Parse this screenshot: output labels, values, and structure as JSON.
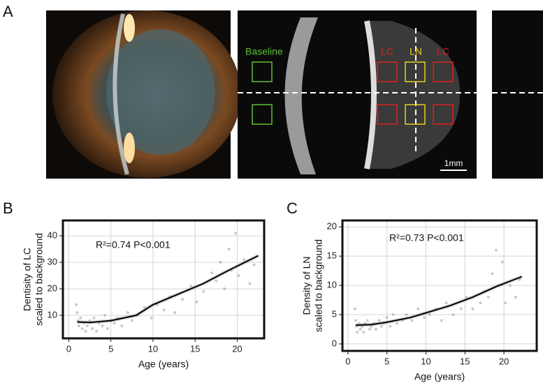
{
  "figure": {
    "panels": [
      "A",
      "B",
      "C"
    ],
    "image_labels": {
      "baseline": "Baseline",
      "lc_left": "LC",
      "ln": "LN",
      "lc_right": "LC",
      "scale_bar": "1mm"
    }
  },
  "chart_data": [
    {
      "type": "scatter",
      "annotation": "R²=0.74 P<0.001",
      "x_label": "Age (years)",
      "y_label": [
        "Dentisity of LC",
        "scaled to background"
      ],
      "xlim": [
        -0.7,
        23.2
      ],
      "ylim": [
        1.3,
        45.8
      ],
      "xticks": [
        0,
        5,
        10,
        15,
        20
      ],
      "yticks": [
        10,
        20,
        30,
        40
      ],
      "grid": true,
      "points": {
        "color": "#8a8a8a",
        "x": [
          0.9,
          1.0,
          1.1,
          1.2,
          1.4,
          1.6,
          1.8,
          2.0,
          2.2,
          2.5,
          2.8,
          3.0,
          3.3,
          3.6,
          4.0,
          4.3,
          4.6,
          5.0,
          5.4,
          5.8,
          6.3,
          7.0,
          7.5,
          8.2,
          9.0,
          9.8,
          10.5,
          11.3,
          12.0,
          12.6,
          13.5,
          14.5,
          15.2,
          16.0,
          17.0,
          17.5,
          18.0,
          18.5,
          19.0,
          19.3,
          19.8,
          20.2,
          20.8,
          21.5,
          22.0
        ],
        "values": [
          14,
          11,
          8,
          6,
          9,
          5,
          7,
          4,
          6,
          8,
          5,
          9,
          4,
          7,
          6,
          10,
          5,
          8,
          7,
          9,
          6,
          11,
          8,
          10,
          13,
          9,
          14,
          12,
          17,
          11,
          16,
          21,
          15,
          19,
          26,
          23,
          30,
          20,
          35,
          27,
          41,
          25,
          31,
          22,
          29
        ]
      },
      "fit": {
        "color": "#000000",
        "x": [
          1,
          2.5,
          5,
          8,
          10,
          13,
          16,
          19,
          22.5
        ],
        "values": [
          7.5,
          7.3,
          8,
          10,
          14,
          18,
          22,
          27,
          32.5
        ]
      }
    },
    {
      "type": "scatter",
      "annotation": "R²=0.73 P<0.001",
      "x_label": "Age (years)",
      "y_label": [
        "Density of LN",
        "scaled to background"
      ],
      "xlim": [
        -0.7,
        24.2
      ],
      "ylim": [
        -1.2,
        21.1
      ],
      "xticks": [
        0,
        5,
        10,
        15,
        20
      ],
      "yticks": [
        0,
        5,
        10,
        15,
        20
      ],
      "grid": true,
      "points": {
        "color": "#8a8a8a",
        "x": [
          0.9,
          1.0,
          1.1,
          1.2,
          1.4,
          1.6,
          1.8,
          2.0,
          2.2,
          2.5,
          2.8,
          3.0,
          3.3,
          3.6,
          4.0,
          4.3,
          4.6,
          5.0,
          5.4,
          5.8,
          6.3,
          7.0,
          7.5,
          8.2,
          9.0,
          9.8,
          10.5,
          11.3,
          12.0,
          12.6,
          13.5,
          14.5,
          15.2,
          16.0,
          17.0,
          17.5,
          18.0,
          18.5,
          19.0,
          19.3,
          19.8,
          20.2,
          20.8,
          21.5,
          22.0
        ],
        "values": [
          6,
          4,
          3,
          2,
          3.5,
          2.5,
          3,
          2,
          3.5,
          4,
          2.5,
          3,
          3.5,
          2.5,
          4,
          3,
          3.5,
          4.5,
          3,
          5,
          3.5,
          4,
          5,
          4,
          6,
          4.5,
          5,
          6,
          4,
          7,
          5,
          6,
          8,
          6,
          7,
          9,
          8,
          12,
          16,
          10,
          14,
          7,
          10,
          8,
          11
        ]
      },
      "fit": {
        "color": "#000000",
        "x": [
          1,
          3,
          5,
          8,
          10,
          13,
          16,
          19,
          22.3
        ],
        "values": [
          3.2,
          3.3,
          3.7,
          4.5,
          5.3,
          6.5,
          8,
          9.8,
          11.5
        ]
      }
    }
  ]
}
